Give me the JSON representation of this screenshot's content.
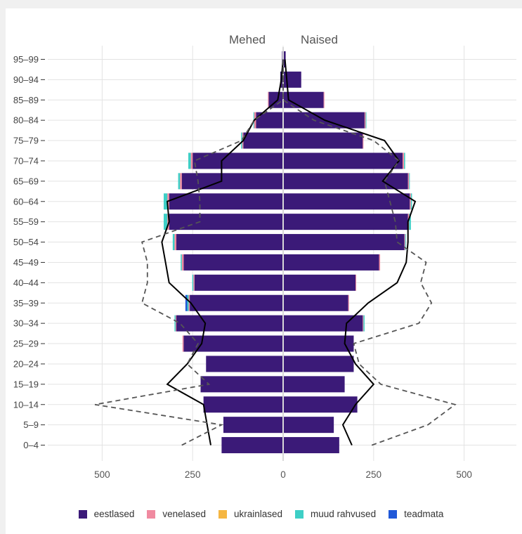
{
  "chart_data": {
    "type": "bar",
    "subtype": "population-pyramid",
    "header_labels": {
      "left": "Mehed",
      "right": "Naised"
    },
    "categories": [
      "0–4",
      "5–9",
      "10–14",
      "15–19",
      "20–24",
      "25–29",
      "30–34",
      "35–39",
      "40–44",
      "45–49",
      "50–54",
      "55–59",
      "60–64",
      "65–69",
      "70–74",
      "75–79",
      "80–84",
      "85–89",
      "90–94",
      "95–99"
    ],
    "xlim": [
      -650,
      650
    ],
    "x_ticks": [
      -500,
      -250,
      0,
      250,
      500
    ],
    "x_tick_labels": [
      "500",
      "250",
      "0",
      "250",
      "500"
    ],
    "grid": true,
    "legend_position": "bottom",
    "series": [
      {
        "name": "eestlased",
        "color": "#3b1a78",
        "men": [
          170,
          165,
          220,
          228,
          213,
          275,
          295,
          258,
          245,
          275,
          295,
          315,
          315,
          280,
          250,
          110,
          75,
          40,
          8,
          3
        ],
        "women": [
          155,
          140,
          205,
          170,
          195,
          195,
          220,
          180,
          200,
          265,
          335,
          345,
          350,
          345,
          330,
          220,
          225,
          112,
          50,
          7
        ]
      },
      {
        "name": "venelased",
        "color": "#f08aa0",
        "men": [
          0,
          0,
          0,
          0,
          0,
          3,
          2,
          3,
          3,
          5,
          5,
          5,
          5,
          5,
          5,
          3,
          5,
          2,
          0,
          0
        ],
        "women": [
          0,
          0,
          0,
          0,
          0,
          0,
          2,
          2,
          2,
          3,
          2,
          3,
          3,
          3,
          4,
          2,
          3,
          2,
          0,
          0
        ]
      },
      {
        "name": "ukrainlased",
        "color": "#f5b642",
        "men": [
          0,
          0,
          0,
          0,
          0,
          0,
          0,
          0,
          0,
          0,
          0,
          0,
          0,
          0,
          0,
          0,
          0,
          0,
          0,
          0
        ],
        "women": [
          0,
          0,
          0,
          0,
          0,
          0,
          0,
          0,
          0,
          0,
          0,
          0,
          0,
          0,
          0,
          0,
          0,
          0,
          0,
          0
        ]
      },
      {
        "name": "muud rahvused",
        "color": "#3ecfc6",
        "men": [
          0,
          0,
          0,
          0,
          0,
          0,
          3,
          4,
          3,
          3,
          5,
          10,
          10,
          5,
          7,
          3,
          2,
          0,
          0,
          0
        ],
        "women": [
          0,
          0,
          0,
          0,
          0,
          0,
          3,
          0,
          0,
          0,
          2,
          5,
          3,
          2,
          3,
          0,
          2,
          0,
          0,
          0
        ]
      },
      {
        "name": "teadmata",
        "color": "#2058d8",
        "men": [
          0,
          0,
          0,
          0,
          0,
          0,
          0,
          5,
          0,
          0,
          0,
          0,
          0,
          0,
          0,
          0,
          0,
          0,
          0,
          0
        ],
        "women": [
          0,
          0,
          0,
          0,
          0,
          0,
          0,
          0,
          0,
          0,
          0,
          0,
          0,
          0,
          0,
          0,
          0,
          0,
          0,
          0
        ]
      }
    ],
    "comparison_lines": [
      {
        "style": "solid",
        "color": "#000000",
        "men": [
          200,
          210,
          220,
          320,
          265,
          225,
          215,
          255,
          315,
          325,
          335,
          315,
          320,
          170,
          170,
          110,
          80,
          15,
          5,
          0
        ],
        "women": [
          190,
          165,
          200,
          250,
          200,
          170,
          175,
          235,
          315,
          340,
          345,
          345,
          365,
          275,
          320,
          280,
          115,
          15,
          10,
          5
        ]
      },
      {
        "style": "dashed",
        "color": "#555555",
        "men": [
          280,
          170,
          520,
          205,
          265,
          235,
          285,
          390,
          375,
          375,
          390,
          230,
          230,
          235,
          245,
          115,
          80,
          0,
          0,
          0
        ],
        "women": [
          245,
          400,
          475,
          270,
          210,
          195,
          375,
          410,
          380,
          395,
          315,
          310,
          295,
          280,
          320,
          250,
          85,
          0,
          0,
          0
        ]
      }
    ]
  }
}
